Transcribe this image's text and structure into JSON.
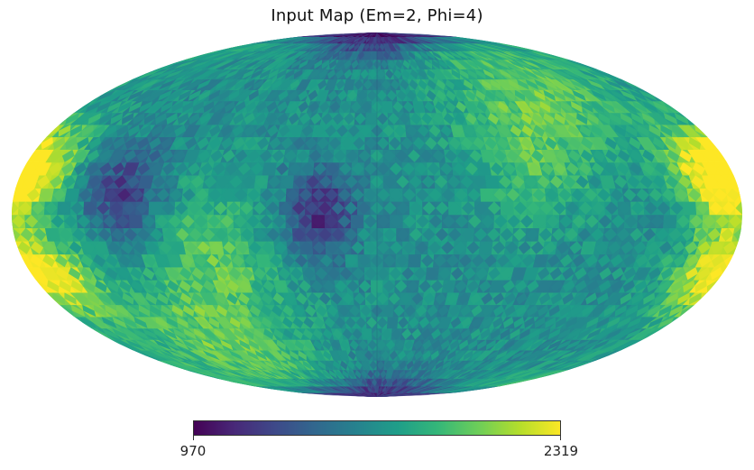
{
  "title": "Input Map (Em=2, Phi=4)",
  "projection": "mollweide",
  "colormap": {
    "name": "viridis",
    "stops": [
      "#440154",
      "#482878",
      "#3e4989",
      "#31688e",
      "#26828e",
      "#1f9e89",
      "#35b779",
      "#6ece58",
      "#b5de2b",
      "#fde725"
    ]
  },
  "colorbar": {
    "min_label": "970",
    "max_label": "2319",
    "min": 970,
    "max": 2319
  },
  "map_data": {
    "type": "healpix-style pixelated sky map",
    "value_range": [
      970,
      2319
    ],
    "background_level": 1640,
    "features": [
      {
        "kind": "bright patch",
        "lon_deg": -172,
        "lat_deg": 18,
        "value": 2200
      },
      {
        "kind": "bright patch",
        "lon_deg": 170,
        "lat_deg": 15,
        "value": 2319
      },
      {
        "kind": "bright patch",
        "lon_deg": 172,
        "lat_deg": -22,
        "value": 2180
      },
      {
        "kind": "bright patch",
        "lon_deg": -165,
        "lat_deg": -25,
        "value": 2150
      },
      {
        "kind": "dark patch",
        "lon_deg": 0,
        "lat_deg": 88,
        "value": 970
      },
      {
        "kind": "dark patch",
        "lon_deg": 0,
        "lat_deg": -88,
        "value": 1050
      },
      {
        "kind": "dark patch",
        "lon_deg": -28,
        "lat_deg": 0,
        "value": 1150
      },
      {
        "kind": "dark patch",
        "lon_deg": -125,
        "lat_deg": 8,
        "value": 1200
      },
      {
        "kind": "bright band",
        "lon_deg": -80,
        "lat_deg": -20,
        "value": 1950
      },
      {
        "kind": "bright band",
        "lon_deg": 80,
        "lat_deg": 28,
        "value": 1950
      },
      {
        "kind": "bright band",
        "lon_deg": -110,
        "lat_deg": -58,
        "value": 1950
      },
      {
        "kind": "bright band",
        "lon_deg": 120,
        "lat_deg": 55,
        "value": 1900
      }
    ]
  }
}
